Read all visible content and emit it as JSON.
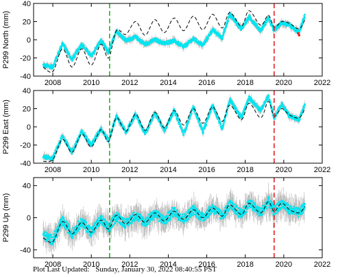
{
  "footer": {
    "label": "Plot Last Updated:",
    "timestamp": "Sunday, January 30, 2022 08:40:55 PST"
  },
  "colors": {
    "data": "#00e5f0",
    "error_bars": "#b8b8b8",
    "model": "#000000",
    "marker_green": "#22b422",
    "marker_red": "#dd2222",
    "outlier": "#ee2222"
  },
  "chart_data": [
    {
      "type": "scatter",
      "ylabel": "P299 North (mm)",
      "xlim": [
        2007,
        2022
      ],
      "ylim": [
        -40,
        40
      ],
      "xticks": [
        2008,
        2010,
        2012,
        2014,
        2016,
        2018,
        2020,
        2022
      ],
      "yticks": [
        -40,
        -20,
        0,
        20,
        40
      ],
      "series": [
        {
          "role": "observed",
          "x": [
            2007.5,
            2008.0,
            2008.5,
            2009.0,
            2009.5,
            2010.0,
            2010.5,
            2010.9,
            2011.3,
            2011.8,
            2012.3,
            2012.8,
            2013.3,
            2013.8,
            2014.3,
            2014.8,
            2015.3,
            2015.8,
            2016.3,
            2016.8,
            2017.2,
            2017.8,
            2018.2,
            2018.8,
            2019.2,
            2019.5,
            2019.9,
            2020.3,
            2020.8,
            2021.1
          ],
          "y": [
            -28,
            -30,
            -4,
            -22,
            -5,
            -18,
            -1,
            -14,
            10,
            -1,
            3,
            -5,
            0,
            -4,
            -1,
            -8,
            1,
            -6,
            11,
            2,
            28,
            12,
            25,
            10,
            24,
            10,
            19,
            16,
            8,
            27
          ]
        },
        {
          "role": "model",
          "x": [
            2007.5,
            2008.0,
            2008.5,
            2009.0,
            2009.5,
            2010.0,
            2010.5,
            2010.9,
            2011.3,
            2011.8,
            2012.3,
            2012.8,
            2013.3,
            2013.8,
            2014.3,
            2014.8,
            2015.3,
            2015.8,
            2016.3,
            2016.8,
            2017.2,
            2017.8,
            2018.2,
            2018.8,
            2019.2,
            2019.5,
            2019.9,
            2020.3,
            2020.8,
            2021.1
          ],
          "y": [
            -30,
            -35,
            -10,
            -30,
            -10,
            -28,
            -5,
            -20,
            10,
            6,
            20,
            5,
            22,
            8,
            24,
            10,
            26,
            11,
            28,
            13,
            30,
            15,
            32,
            16,
            27,
            14,
            20,
            18,
            12,
            22
          ]
        }
      ],
      "vlines": [
        {
          "x": 2010.95,
          "color": "#22b422",
          "style": "dashed"
        },
        {
          "x": 2019.5,
          "color": "#dd2222",
          "style": "dashed"
        }
      ]
    },
    {
      "type": "scatter",
      "ylabel": "P299 East (mm)",
      "xlim": [
        2007,
        2022
      ],
      "ylim": [
        -40,
        40
      ],
      "xticks": [
        2008,
        2010,
        2012,
        2014,
        2016,
        2018,
        2020,
        2022
      ],
      "yticks": [
        -40,
        -20,
        0,
        20,
        40
      ],
      "series": [
        {
          "role": "observed",
          "x": [
            2007.5,
            2008.0,
            2008.5,
            2009.0,
            2009.5,
            2010.0,
            2010.5,
            2010.9,
            2011.3,
            2011.8,
            2012.3,
            2012.8,
            2013.3,
            2013.8,
            2014.3,
            2014.8,
            2015.3,
            2015.8,
            2016.3,
            2016.8,
            2017.2,
            2017.8,
            2018.2,
            2018.8,
            2019.2,
            2019.5,
            2019.9,
            2020.3,
            2020.8,
            2021.1
          ],
          "y": [
            -33,
            -35,
            -10,
            -28,
            -5,
            -20,
            -2,
            -15,
            12,
            -6,
            14,
            -8,
            16,
            -4,
            18,
            -8,
            22,
            -6,
            24,
            -2,
            30,
            10,
            32,
            18,
            34,
            10,
            25,
            12,
            8,
            25
          ]
        },
        {
          "role": "model",
          "x": [
            2007.5,
            2008.0,
            2008.5,
            2009.0,
            2009.5,
            2010.0,
            2010.5,
            2010.9,
            2011.3,
            2011.8,
            2012.3,
            2012.8,
            2013.3,
            2013.8,
            2014.3,
            2014.8,
            2015.3,
            2015.8,
            2016.3,
            2016.8,
            2017.2,
            2017.8,
            2018.2,
            2018.8,
            2019.2,
            2019.5,
            2019.9,
            2020.3,
            2020.8,
            2021.1
          ],
          "y": [
            -38,
            -36,
            -14,
            -28,
            -8,
            -22,
            -3,
            -16,
            10,
            -5,
            14,
            -4,
            16,
            -1,
            18,
            2,
            20,
            4,
            22,
            6,
            24,
            8,
            26,
            10,
            28,
            12,
            20,
            13,
            10,
            20
          ]
        }
      ],
      "vlines": [
        {
          "x": 2010.95,
          "color": "#22b422",
          "style": "dashed"
        },
        {
          "x": 2019.5,
          "color": "#dd2222",
          "style": "dashed"
        }
      ]
    },
    {
      "type": "scatter",
      "ylabel": "P299 Up (mm)",
      "xlim": [
        2007,
        2022
      ],
      "ylim": [
        -50,
        50
      ],
      "xticks": [
        2008,
        2010,
        2012,
        2014,
        2016,
        2018,
        2020,
        2022
      ],
      "yticks": [
        -40,
        0,
        40
      ],
      "series": [
        {
          "role": "observed",
          "x": [
            2007.5,
            2008.0,
            2008.5,
            2009.0,
            2009.5,
            2010.0,
            2010.5,
            2010.9,
            2011.3,
            2011.8,
            2012.3,
            2012.8,
            2013.3,
            2013.8,
            2014.3,
            2014.8,
            2015.3,
            2015.8,
            2016.3,
            2016.8,
            2017.2,
            2017.8,
            2018.2,
            2018.8,
            2019.2,
            2019.5,
            2019.9,
            2020.3,
            2020.8,
            2021.1
          ],
          "y": [
            -22,
            -28,
            -4,
            -20,
            -5,
            -18,
            -2,
            -14,
            2,
            -8,
            3,
            -6,
            5,
            -4,
            8,
            -2,
            10,
            0,
            12,
            2,
            16,
            4,
            18,
            6,
            20,
            8,
            18,
            10,
            6,
            14
          ]
        },
        {
          "role": "model",
          "x": [
            2007.5,
            2008.0,
            2008.5,
            2009.0,
            2009.5,
            2010.0,
            2010.5,
            2010.9,
            2011.3,
            2011.8,
            2012.3,
            2012.8,
            2013.3,
            2013.8,
            2014.3,
            2014.8,
            2015.3,
            2015.8,
            2016.3,
            2016.8,
            2017.2,
            2017.8,
            2018.2,
            2018.8,
            2019.2,
            2019.5,
            2019.9,
            2020.3,
            2020.8,
            2021.1
          ],
          "y": [
            -25,
            -30,
            -5,
            -20,
            -6,
            -18,
            -3,
            -14,
            3,
            -8,
            4,
            -6,
            6,
            -4,
            8,
            -2,
            10,
            0,
            12,
            2,
            16,
            4,
            18,
            6,
            20,
            8,
            18,
            10,
            6,
            14
          ]
        }
      ],
      "vlines": [
        {
          "x": 2010.95,
          "color": "#22b422",
          "style": "dashed"
        },
        {
          "x": 2019.5,
          "color": "#dd2222",
          "style": "dashed"
        }
      ]
    }
  ]
}
